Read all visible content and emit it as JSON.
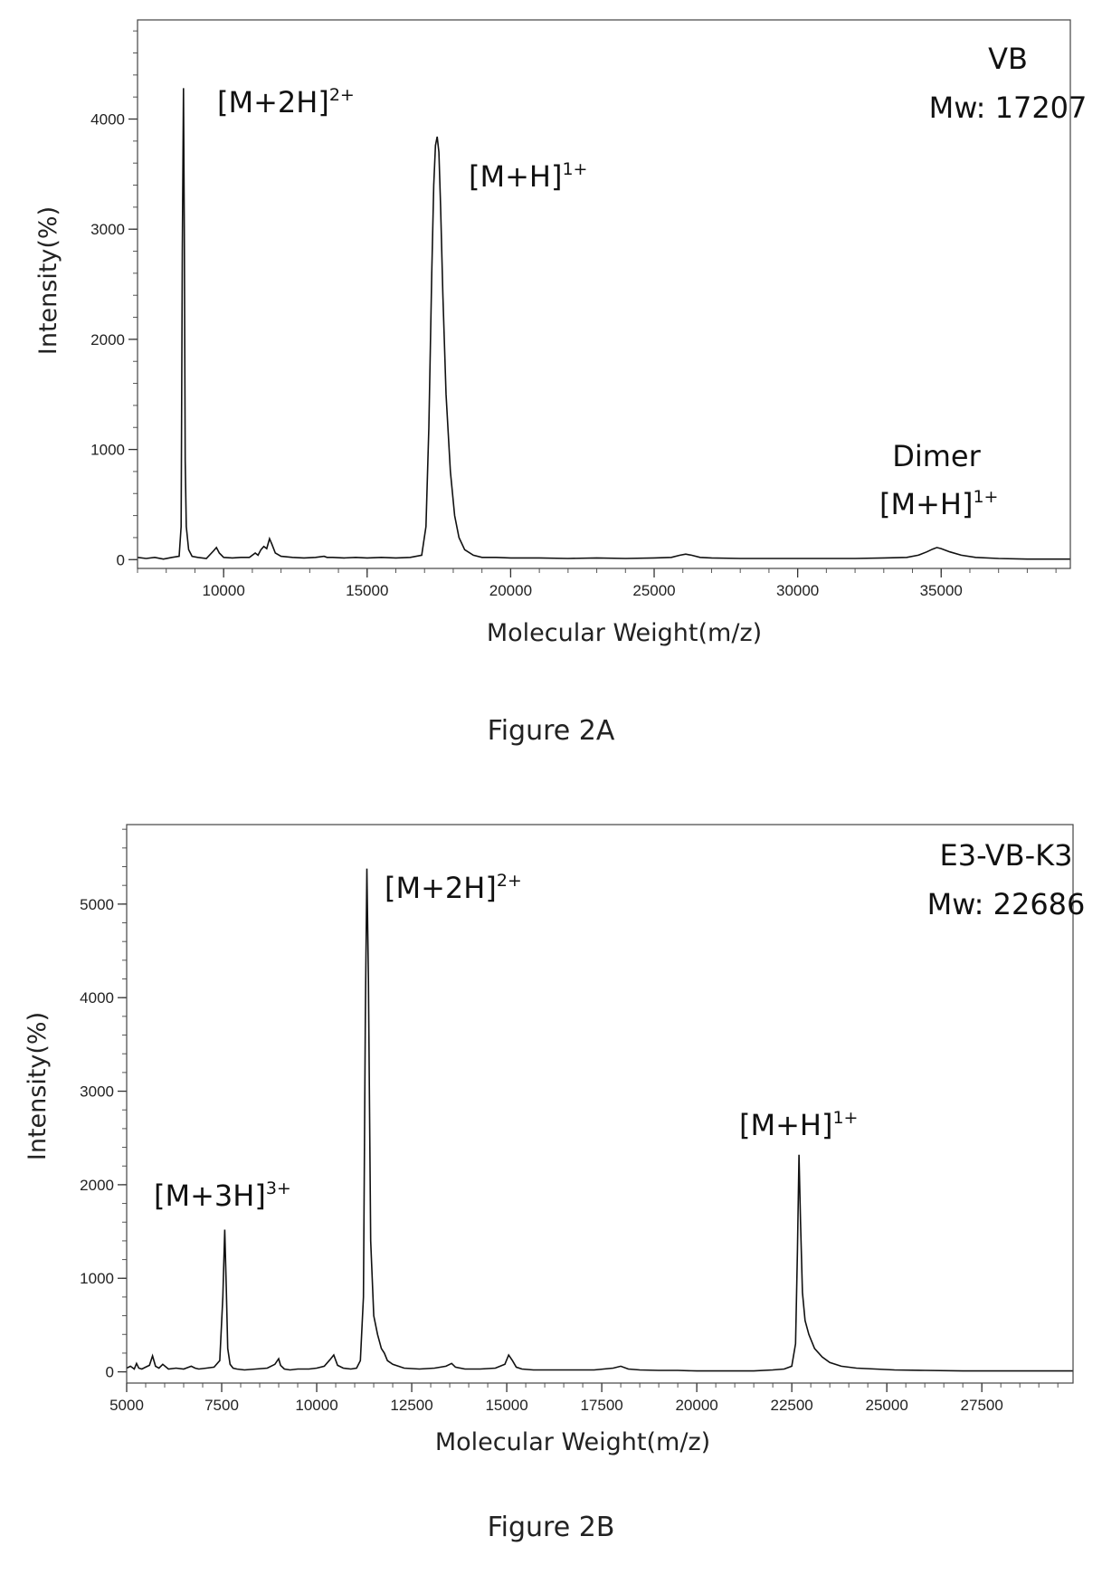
{
  "chart_data": [
    {
      "type": "line",
      "caption": "Figure 2A",
      "xlabel": "Molecular Weight(m/z)",
      "ylabel": "Intensity(%)",
      "xlim": [
        7000,
        39500
      ],
      "ylim": [
        -80,
        4900
      ],
      "xticks": [
        10000,
        15000,
        20000,
        25000,
        30000,
        35000
      ],
      "xminor": 1000,
      "yticks": [
        0,
        1000,
        2000,
        3000,
        4000
      ],
      "yminor": 200,
      "grid": false,
      "legend": "none",
      "sample_name": "VB",
      "sample_mw": "Mw: 17207",
      "series": [
        {
          "x": [
            7000,
            7300,
            7600,
            7900,
            8200,
            8450,
            8520,
            8560,
            8600,
            8630,
            8660,
            8700,
            8780,
            8900,
            9100,
            9400,
            9650,
            9750,
            9850,
            10000,
            10300,
            10600,
            10900,
            11100,
            11200,
            11300,
            11400,
            11500,
            11600,
            11680,
            11800,
            12000,
            12400,
            12800,
            13200,
            13500,
            13600,
            13800,
            14200,
            14600,
            15000,
            15500,
            16000,
            16500,
            16900,
            17050,
            17150,
            17250,
            17320,
            17380,
            17440,
            17500,
            17560,
            17640,
            17750,
            17900,
            18050,
            18200,
            18400,
            18700,
            19000,
            19500,
            20000,
            21000,
            22000,
            23000,
            24000,
            25000,
            25600,
            25900,
            26100,
            26300,
            26600,
            27000,
            28000,
            29000,
            30000,
            31000,
            32000,
            33000,
            33800,
            34200,
            34500,
            34700,
            34850,
            35000,
            35300,
            35700,
            36200,
            37000,
            38000,
            39000,
            39500
          ],
          "y": [
            20,
            10,
            20,
            5,
            20,
            30,
            300,
            2800,
            4280,
            3000,
            900,
            300,
            90,
            30,
            20,
            10,
            80,
            110,
            60,
            20,
            15,
            20,
            20,
            60,
            40,
            90,
            120,
            100,
            190,
            140,
            60,
            30,
            20,
            15,
            20,
            30,
            20,
            20,
            15,
            20,
            15,
            20,
            15,
            20,
            40,
            300,
            1200,
            2600,
            3400,
            3760,
            3840,
            3700,
            3200,
            2400,
            1500,
            800,
            400,
            200,
            90,
            40,
            20,
            20,
            15,
            15,
            10,
            15,
            10,
            15,
            20,
            40,
            50,
            40,
            20,
            15,
            10,
            10,
            10,
            10,
            10,
            15,
            20,
            40,
            70,
            95,
            110,
            100,
            70,
            40,
            20,
            10,
            5,
            5,
            5
          ]
        }
      ],
      "annotations": [
        {
          "ion": "[M+2H]",
          "charge": "2+"
        },
        {
          "ion": "[M+H]",
          "charge": "1+"
        },
        {
          "title": "Dimer",
          "ion": "[M+H]",
          "charge": "1+"
        }
      ]
    },
    {
      "type": "line",
      "caption": "Figure 2B",
      "xlabel": "Molecular Weight(m/z)",
      "ylabel": "Intensity(%)",
      "xlim": [
        5000,
        29900
      ],
      "ylim": [
        -120,
        5850
      ],
      "xticks": [
        5000,
        7500,
        10000,
        12500,
        15000,
        17500,
        20000,
        22500,
        25000,
        27500
      ],
      "xminor": 500,
      "yticks": [
        0,
        1000,
        2000,
        3000,
        4000,
        5000
      ],
      "yminor": 200,
      "grid": false,
      "legend": "none",
      "sample_name": "E3-VB-K3",
      "sample_mw": "Mw: 22686",
      "series": [
        {
          "x": [
            5000,
            5100,
            5200,
            5260,
            5320,
            5400,
            5500,
            5600,
            5680,
            5760,
            5850,
            5950,
            6100,
            6300,
            6500,
            6700,
            6800,
            6900,
            7100,
            7300,
            7450,
            7530,
            7580,
            7620,
            7660,
            7720,
            7800,
            7900,
            8100,
            8400,
            8700,
            8900,
            9000,
            9050,
            9150,
            9300,
            9500,
            9800,
            10000,
            10200,
            10350,
            10450,
            10550,
            10700,
            10900,
            11050,
            11150,
            11230,
            11280,
            11320,
            11360,
            11420,
            11500,
            11600,
            11700,
            11780,
            11860,
            12000,
            12300,
            12700,
            13100,
            13400,
            13550,
            13650,
            13900,
            14300,
            14700,
            14950,
            15050,
            15150,
            15250,
            15400,
            15700,
            16200,
            16800,
            17300,
            17800,
            18000,
            18200,
            18500,
            19000,
            19500,
            20000,
            20500,
            21000,
            21500,
            22000,
            22300,
            22500,
            22600,
            22650,
            22690,
            22730,
            22780,
            22850,
            22950,
            23100,
            23300,
            23500,
            23800,
            24200,
            24700,
            25200,
            26000,
            27000,
            28000,
            29000,
            29900
          ],
          "y": [
            40,
            60,
            30,
            90,
            40,
            30,
            50,
            70,
            170,
            60,
            40,
            80,
            30,
            40,
            30,
            60,
            40,
            30,
            40,
            50,
            120,
            800,
            1520,
            900,
            250,
            80,
            40,
            30,
            20,
            30,
            40,
            80,
            140,
            70,
            30,
            20,
            30,
            30,
            40,
            60,
            130,
            180,
            70,
            40,
            30,
            40,
            120,
            800,
            3800,
            5380,
            4200,
            1400,
            600,
            400,
            250,
            200,
            120,
            80,
            40,
            30,
            40,
            60,
            90,
            50,
            30,
            30,
            40,
            80,
            180,
            120,
            50,
            30,
            20,
            20,
            20,
            20,
            40,
            60,
            30,
            20,
            15,
            15,
            10,
            10,
            10,
            10,
            20,
            30,
            60,
            300,
            1300,
            2320,
            1600,
            850,
            550,
            400,
            250,
            160,
            100,
            60,
            40,
            30,
            20,
            15,
            10,
            10,
            10,
            10
          ]
        }
      ],
      "annotations": [
        {
          "ion": "[M+3H]",
          "charge": "3+"
        },
        {
          "ion": "[M+2H]",
          "charge": "2+"
        },
        {
          "ion": "[M+H]",
          "charge": "1+"
        }
      ]
    }
  ]
}
